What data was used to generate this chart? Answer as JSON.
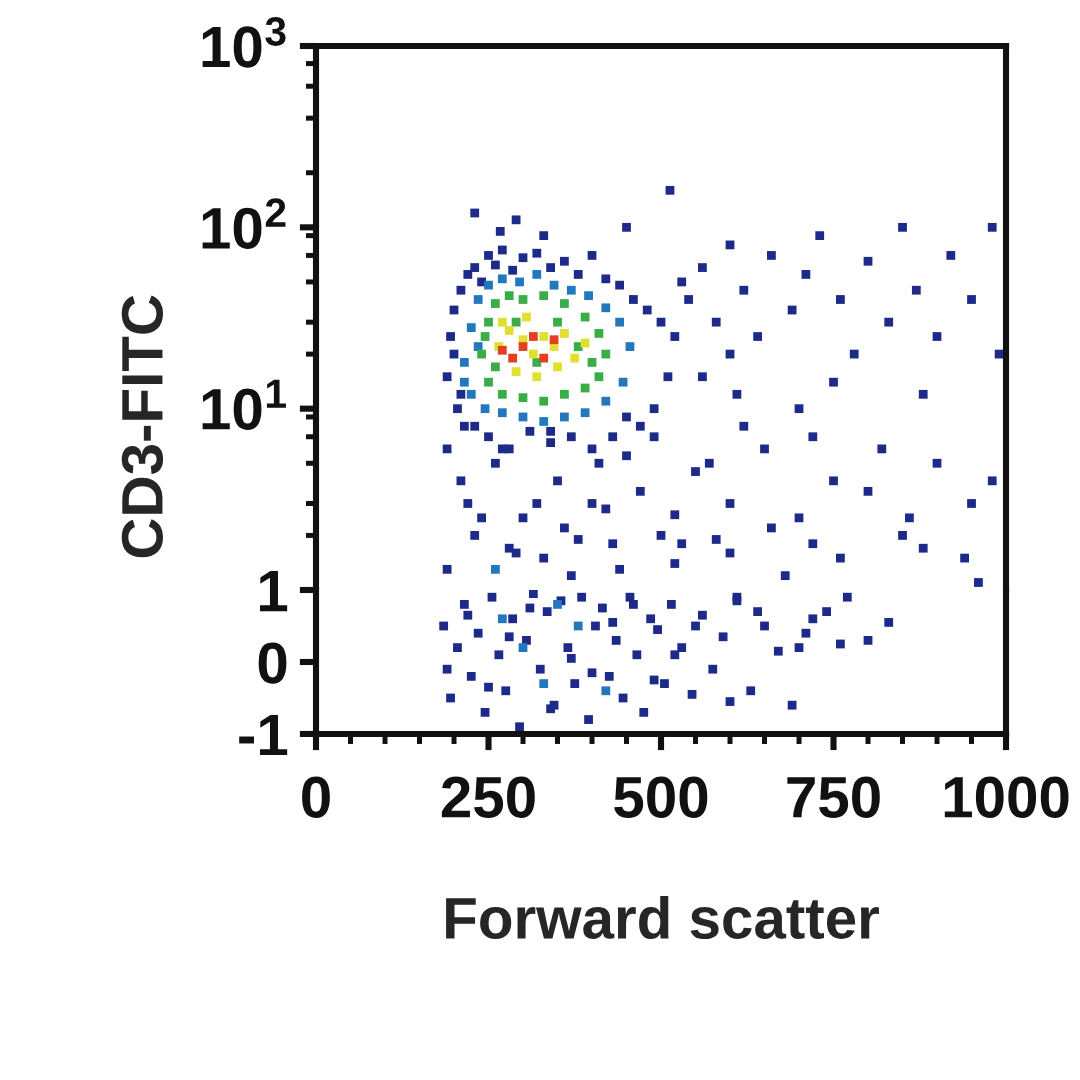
{
  "chart_data": [
    {
      "type": "scatter",
      "ylabel": "CD3-FITC",
      "marker": "square",
      "log": "y",
      "tick_labels": "y",
      "xlim": [
        0,
        1000
      ],
      "ylim": [
        1,
        1000
      ],
      "yticks": [
        {
          "value": 1000,
          "label": "10$^{3}$"
        },
        {
          "value": 800,
          "label": null
        },
        {
          "value": 600,
          "label": null
        },
        {
          "value": 400,
          "label": null
        },
        {
          "value": 200,
          "label": null
        },
        {
          "value": 100,
          "label": "10$^{2}$"
        },
        {
          "value": 90,
          "label": null
        },
        {
          "value": 70,
          "label": null
        },
        {
          "value": 50,
          "label": null
        },
        {
          "value": 30,
          "label": null
        },
        {
          "value": 20,
          "label": null
        },
        {
          "value": 10,
          "label": "10$^{1}$"
        },
        {
          "value": 9,
          "label": null
        },
        {
          "value": 7,
          "label": null
        },
        {
          "value": 5,
          "label": null
        },
        {
          "value": 3,
          "label": null
        },
        {
          "value": 2,
          "label": null
        }
      ],
      "series": [
        {
          "color": "#1d2a8a",
          "x": [
            190,
            195,
            200,
            205,
            210,
            215,
            220,
            230,
            240,
            250,
            260,
            270,
            285,
            300,
            320,
            340,
            360,
            380,
            400,
            420,
            440,
            460,
            480,
            500,
            520,
            510,
            490,
            470,
            450,
            430,
            400,
            370,
            340,
            310,
            280,
            250,
            230,
            210,
            200,
            513,
            267,
            290,
            330,
            450,
            230,
            540,
            560,
            580,
            600,
            620,
            640,
            660,
            690,
            710,
            730,
            760,
            780,
            800,
            830,
            850,
            870,
            900,
            920,
            950,
            980,
            990,
            560,
            610,
            700,
            750,
            880,
            600,
            530,
            220,
            260,
            300,
            350,
            400,
            450,
            500,
            550,
            600,
            650,
            700,
            750,
            800,
            850,
            900,
            950,
            980,
            620,
            720,
            820,
            330,
            370,
            430,
            520,
            600,
            680,
            760,
            880,
            960,
            230,
            280,
            360,
            420,
            520,
            580,
            660,
            720,
            860,
            940,
            190,
            210,
            240,
            270,
            290,
            320,
            340,
            380,
            410,
            440,
            470,
            490,
            530,
            570,
            190
          ],
          "values": [
            15,
            25,
            35,
            10,
            45,
            8,
            55,
            60,
            50,
            70,
            62,
            75,
            58,
            68,
            72,
            60,
            65,
            55,
            70,
            52,
            48,
            40,
            35,
            30,
            25,
            15,
            10,
            8,
            9,
            7,
            6,
            7,
            6.5,
            7.5,
            6,
            7,
            8,
            12,
            20,
            160,
            95,
            110,
            90,
            100,
            120,
            40,
            60,
            30,
            80,
            45,
            25,
            70,
            35,
            55,
            90,
            40,
            20,
            65,
            30,
            100,
            45,
            25,
            70,
            40,
            100,
            20,
            15,
            12,
            10,
            14,
            12,
            20,
            50,
            3,
            5,
            2.5,
            4,
            3,
            5.5,
            2,
            4.5,
            3,
            6,
            2.5,
            4,
            3.5,
            2,
            5,
            3,
            4,
            8,
            7,
            6,
            1.5,
            1.2,
            1.8,
            1.4,
            1.6,
            1.2,
            1.5,
            1.7,
            1.1,
            2,
            1.7,
            2.2,
            2.8,
            2.6,
            1.9,
            2.2,
            1.8,
            2.5,
            1.5,
            1.3,
            4,
            2.5,
            6,
            1.6,
            3,
            7.5,
            1.9,
            5,
            1.3,
            3.5,
            7,
            1.8,
            5,
            6
          ]
        },
        {
          "color": "#2378bd",
          "x": [
            215,
            225,
            235,
            250,
            270,
            295,
            320,
            345,
            370,
            395,
            420,
            440,
            455,
            445,
            420,
            390,
            360,
            330,
            300,
            270,
            245,
            225,
            215,
            235,
            260
          ],
          "values": [
            18,
            28,
            40,
            48,
            52,
            50,
            55,
            48,
            45,
            42,
            36,
            30,
            22,
            14,
            11,
            9.5,
            9,
            8.5,
            9,
            9.5,
            10,
            12,
            14,
            22,
            1.3
          ]
        },
        {
          "color": "#3aad48",
          "x": [
            240,
            250,
            260,
            280,
            300,
            330,
            360,
            390,
            410,
            420,
            410,
            390,
            360,
            330,
            300,
            270,
            250,
            245,
            380,
            260,
            400,
            350,
            290,
            320
          ],
          "values": [
            20,
            30,
            38,
            42,
            40,
            42,
            38,
            32,
            26,
            20,
            15,
            13,
            12,
            11,
            11.5,
            12,
            14,
            25,
            22,
            17,
            18,
            30,
            30,
            18
          ]
        },
        {
          "color": "#dfe02f",
          "x": [
            265,
            280,
            300,
            315,
            330,
            345,
            360,
            375,
            290,
            320,
            350,
            270,
            305,
            390
          ],
          "values": [
            22,
            27,
            24,
            20,
            25,
            22,
            26,
            19,
            16,
            15,
            17,
            30,
            32,
            23
          ]
        },
        {
          "color": "#e2401f",
          "x": [
            270,
            285,
            300,
            315,
            330,
            345
          ],
          "values": [
            21,
            19,
            22,
            25,
            19,
            24
          ]
        }
      ]
    },
    {
      "type": "scatter",
      "xlabel": "Forward scatter",
      "marker": "square",
      "xlim": [
        0,
        1000
      ],
      "ylim": [
        -1,
        1
      ],
      "xticks": [
        0,
        {
          "value": 50,
          "label": null
        },
        {
          "value": 100,
          "label": null
        },
        {
          "value": 150,
          "label": null
        },
        {
          "value": 200,
          "label": null
        },
        250,
        {
          "value": 300,
          "label": null
        },
        {
          "value": 350,
          "label": null
        },
        {
          "value": 400,
          "label": null
        },
        {
          "value": 450,
          "label": null
        },
        500,
        {
          "value": 550,
          "label": null
        },
        {
          "value": 600,
          "label": null
        },
        {
          "value": 650,
          "label": null
        },
        {
          "value": 700,
          "label": null
        },
        750,
        {
          "value": 800,
          "label": null
        },
        {
          "value": 850,
          "label": null
        },
        {
          "value": 900,
          "label": null
        },
        {
          "value": 950,
          "label": null
        },
        1000
      ],
      "yticks": [
        1,
        0,
        -1
      ],
      "series": [
        {
          "color": "#1d2a8a",
          "x": [
            185,
            195,
            205,
            215,
            225,
            235,
            245,
            255,
            265,
            275,
            285,
            295,
            305,
            315,
            325,
            335,
            345,
            355,
            365,
            375,
            385,
            395,
            405,
            415,
            425,
            435,
            445,
            455,
            465,
            475,
            485,
            495,
            505,
            515,
            530,
            545,
            560,
            575,
            590,
            610,
            630,
            650,
            670,
            690,
            710,
            740,
            770,
            800,
            830,
            720,
            760,
            610,
            190,
            220,
            250,
            280,
            310,
            340,
            370,
            400,
            430,
            460,
            490,
            520,
            550,
            600,
            640,
            700
          ],
          "values": [
            0.5,
            -0.5,
            0.2,
            0.8,
            -0.2,
            0.4,
            -0.7,
            0.9,
            0.1,
            -0.4,
            0.6,
            -0.9,
            0.3,
            0.95,
            -0.1,
            0.7,
            -0.6,
            0.85,
            0.2,
            -0.3,
            0.9,
            -0.8,
            0.5,
            0.75,
            -0.2,
            0.3,
            -0.5,
            0.9,
            0.1,
            -0.7,
            0.6,
            0.45,
            -0.3,
            0.8,
            0.2,
            -0.45,
            0.65,
            -0.1,
            0.35,
            0.9,
            -0.4,
            0.5,
            0.15,
            -0.6,
            0.4,
            0.7,
            0.9,
            0.3,
            0.55,
            0.6,
            0.25,
            0.85,
            -0.1,
            0.65,
            -0.35,
            0.35,
            0.75,
            -0.65,
            0.05,
            -0.15,
            0.55,
            0.8,
            -0.25,
            0.1,
            0.5,
            -0.55,
            0.7,
            0.2
          ]
        },
        {
          "color": "#2378bd",
          "x": [
            300,
            380,
            420,
            270,
            330,
            350
          ],
          "values": [
            0.2,
            0.5,
            -0.4,
            0.6,
            -0.3,
            0.8
          ]
        }
      ]
    }
  ]
}
